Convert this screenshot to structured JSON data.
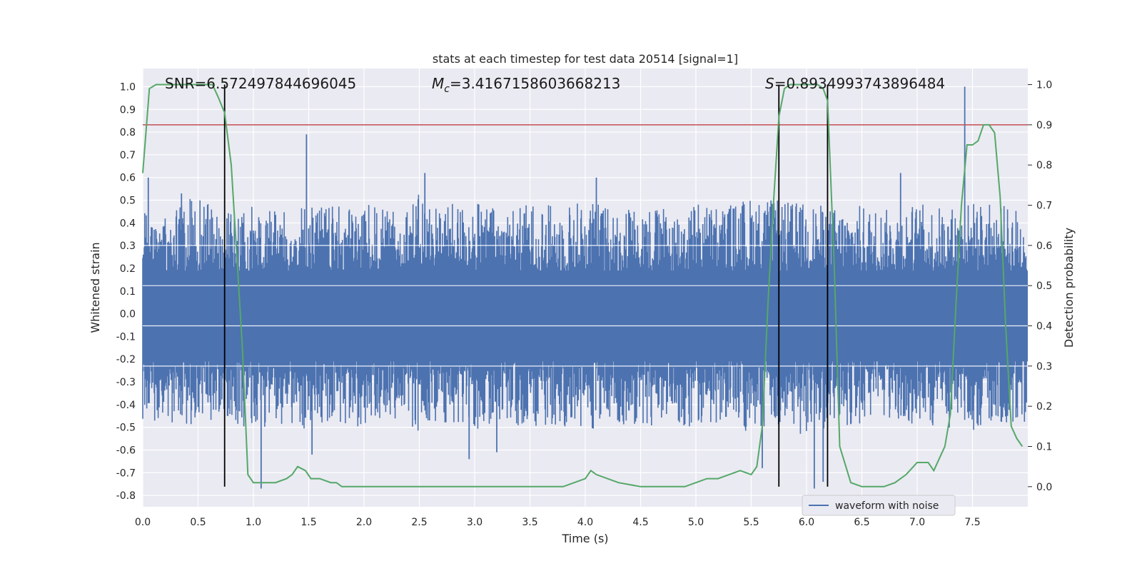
{
  "chart_data": {
    "type": "line",
    "title": "stats at each timestep for test data 20514 [signal=1]",
    "xlabel": "Time (s)",
    "ylabel": "Whitened strain",
    "y2label": "Detection probability",
    "xlim": [
      0.0,
      8.0
    ],
    "ylim": [
      -0.85,
      1.08
    ],
    "y2lim": [
      -0.05,
      1.04
    ],
    "xticks": [
      "0.0",
      "0.5",
      "1.0",
      "1.5",
      "2.0",
      "2.5",
      "3.0",
      "3.5",
      "4.0",
      "4.5",
      "5.0",
      "5.5",
      "6.0",
      "6.5",
      "7.0",
      "7.5"
    ],
    "xtick_values": [
      0.0,
      0.5,
      1.0,
      1.5,
      2.0,
      2.5,
      3.0,
      3.5,
      4.0,
      4.5,
      5.0,
      5.5,
      6.0,
      6.5,
      7.0,
      7.5
    ],
    "yticks": [
      "1.0",
      "0.9",
      "0.8",
      "0.7",
      "0.6",
      "0.5",
      "0.4",
      "0.3",
      "0.2",
      "0.1",
      "0.0",
      "-0.1",
      "-0.2",
      "-0.3",
      "-0.4",
      "-0.5",
      "-0.6",
      "-0.7",
      "-0.8"
    ],
    "ytick_values": [
      1.0,
      0.9,
      0.8,
      0.7,
      0.6,
      0.5,
      0.4,
      0.3,
      0.2,
      0.1,
      0.0,
      -0.1,
      -0.2,
      -0.3,
      -0.4,
      -0.5,
      -0.6,
      -0.7,
      -0.8
    ],
    "y2ticks": [
      "1.0",
      "0.9",
      "0.8",
      "0.7",
      "0.6",
      "0.5",
      "0.4",
      "0.3",
      "0.2",
      "0.1",
      "0.0"
    ],
    "y2tick_values": [
      1.0,
      0.9,
      0.8,
      0.7,
      0.6,
      0.5,
      0.4,
      0.3,
      0.2,
      0.1,
      0.0
    ],
    "grid": true,
    "legend_position": "lower-right",
    "annotations": {
      "snr": "SNR=6.572497844696045",
      "mc_symbol": "M",
      "mc_sub": "c",
      "mc_value": "=3.4167158603668213",
      "s_symbol": "S",
      "s_value": "=0.8934993743896484"
    },
    "colors": {
      "background": "#eaeaf2",
      "grid": "#ffffff",
      "waveform": "#4c72b0",
      "probability": "#55a868",
      "threshold": "#c44e52",
      "markers": "#000000"
    },
    "threshold": 0.9,
    "vertical_markers": [
      0.74,
      5.75,
      6.19
    ],
    "series": [
      {
        "name": "waveform with noise",
        "axis": "left",
        "envelope": {
          "x": [
            0.0,
            0.25,
            0.5,
            0.75,
            1.0,
            1.25,
            1.5,
            1.75,
            2.0,
            2.25,
            2.5,
            2.75,
            3.0,
            3.25,
            3.5,
            3.75,
            4.0,
            4.25,
            4.5,
            4.75,
            5.0,
            5.25,
            5.5,
            5.75,
            6.0,
            6.25,
            6.5,
            6.75,
            7.0,
            7.25,
            7.5,
            7.75,
            7.99
          ],
          "upper": [
            0.45,
            0.47,
            0.52,
            0.44,
            0.48,
            0.46,
            0.5,
            0.47,
            0.49,
            0.45,
            0.53,
            0.48,
            0.5,
            0.46,
            0.49,
            0.48,
            0.51,
            0.47,
            0.49,
            0.46,
            0.5,
            0.48,
            0.52,
            0.5,
            0.49,
            0.47,
            0.48,
            0.46,
            0.49,
            0.47,
            0.5,
            0.48,
            0.47
          ],
          "lower": [
            -0.47,
            -0.48,
            -0.5,
            -0.46,
            -0.52,
            -0.49,
            -0.51,
            -0.48,
            -0.5,
            -0.47,
            -0.52,
            -0.49,
            -0.51,
            -0.48,
            -0.5,
            -0.49,
            -0.52,
            -0.48,
            -0.5,
            -0.49,
            -0.51,
            -0.48,
            -0.53,
            -0.52,
            -0.54,
            -0.5,
            -0.49,
            -0.48,
            -0.51,
            -0.5,
            -0.52,
            -0.49,
            -0.48
          ]
        },
        "spikes": [
          {
            "x": 0.05,
            "y": 0.6
          },
          {
            "x": 0.35,
            "y": 0.53
          },
          {
            "x": 1.48,
            "y": 0.79
          },
          {
            "x": 2.55,
            "y": 0.62
          },
          {
            "x": 4.1,
            "y": 0.6
          },
          {
            "x": 6.85,
            "y": 0.62
          },
          {
            "x": 7.43,
            "y": 1.0
          },
          {
            "x": 1.07,
            "y": -0.77
          },
          {
            "x": 1.53,
            "y": -0.62
          },
          {
            "x": 2.95,
            "y": -0.64
          },
          {
            "x": 6.07,
            "y": -0.77
          },
          {
            "x": 6.15,
            "y": -0.74
          },
          {
            "x": 5.6,
            "y": -0.68
          },
          {
            "x": 3.2,
            "y": -0.61
          }
        ]
      },
      {
        "name": "",
        "axis": "right",
        "x": [
          0.0,
          0.06,
          0.12,
          0.25,
          0.5,
          0.63,
          0.68,
          0.74,
          0.8,
          0.9,
          0.95,
          1.0,
          1.2,
          1.3,
          1.35,
          1.4,
          1.47,
          1.52,
          1.6,
          1.7,
          1.75,
          1.8,
          1.9,
          2.0,
          2.1,
          2.2,
          2.5,
          3.0,
          3.2,
          3.3,
          3.5,
          3.7,
          3.8,
          3.9,
          4.0,
          4.05,
          4.1,
          4.3,
          4.5,
          4.7,
          4.9,
          5.0,
          5.1,
          5.2,
          5.3,
          5.4,
          5.5,
          5.55,
          5.6,
          5.65,
          5.7,
          5.75,
          5.8,
          5.85,
          5.9,
          6.0,
          6.1,
          6.15,
          6.19,
          6.25,
          6.3,
          6.4,
          6.5,
          6.6,
          6.7,
          6.8,
          6.9,
          7.0,
          7.1,
          7.15,
          7.2,
          7.25,
          7.3,
          7.35,
          7.4,
          7.45,
          7.5,
          7.55,
          7.6,
          7.65,
          7.7,
          7.75,
          7.8,
          7.85,
          7.9,
          7.95
        ],
        "y": [
          0.78,
          0.99,
          1.0,
          1.0,
          1.0,
          1.0,
          0.97,
          0.93,
          0.8,
          0.35,
          0.03,
          0.01,
          0.01,
          0.02,
          0.03,
          0.05,
          0.04,
          0.02,
          0.02,
          0.01,
          0.01,
          0.0,
          0.0,
          0.0,
          0.0,
          0.0,
          0.0,
          0.0,
          0.0,
          0.0,
          0.0,
          0.0,
          0.0,
          0.01,
          0.02,
          0.04,
          0.03,
          0.01,
          0.0,
          0.0,
          0.0,
          0.01,
          0.02,
          0.02,
          0.03,
          0.04,
          0.03,
          0.05,
          0.15,
          0.45,
          0.7,
          0.92,
          0.99,
          1.0,
          1.0,
          1.0,
          1.0,
          0.99,
          0.96,
          0.55,
          0.1,
          0.01,
          0.0,
          0.0,
          0.0,
          0.01,
          0.03,
          0.06,
          0.06,
          0.04,
          0.07,
          0.1,
          0.18,
          0.45,
          0.7,
          0.85,
          0.85,
          0.86,
          0.9,
          0.9,
          0.88,
          0.72,
          0.4,
          0.15,
          0.12,
          0.1
        ]
      }
    ]
  }
}
